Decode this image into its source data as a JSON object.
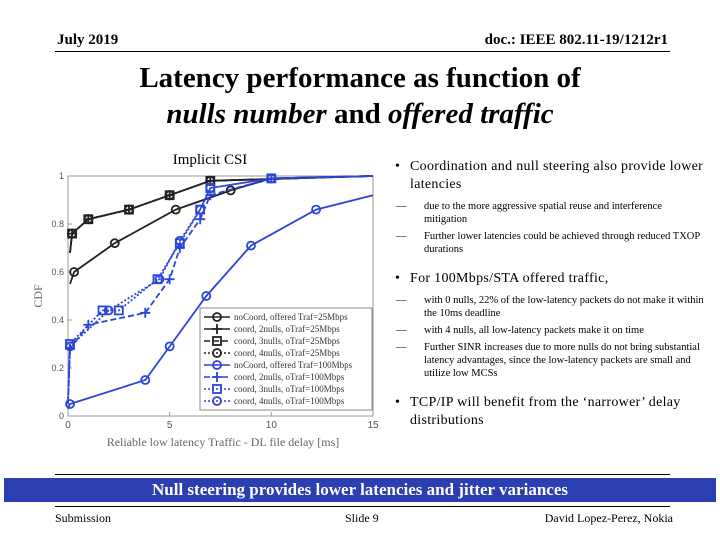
{
  "header": {
    "date": "July 2019",
    "doc_id": "doc.: IEEE 802.11-19/1212r1"
  },
  "title": {
    "line1": "Latency performance as function of",
    "line2_part1": "nulls number",
    "line2_part2": " and ",
    "line2_part3": "offered traffic"
  },
  "chart_data": {
    "type": "line",
    "title": "Implicit CSI",
    "xlabel": "Reliable low latency Traffic - DL file delay [ms]",
    "ylabel": "CDF",
    "xlim": [
      0,
      15
    ],
    "ylim": [
      0,
      1
    ],
    "xticks": [
      "0",
      "5",
      "10",
      "15"
    ],
    "yticks": [
      "0",
      "0.2",
      "0.4",
      "0.6",
      "0.8",
      "1"
    ],
    "series": [
      {
        "name": "noCoord, offered Traf=25Mbps",
        "color": "#222222",
        "marker": "circle",
        "dash": "solid",
        "x": [
          0.1,
          0.3,
          2.3,
          5.3,
          8,
          10,
          15
        ],
        "y": [
          0.55,
          0.6,
          0.72,
          0.86,
          0.94,
          0.99,
          1.0
        ]
      },
      {
        "name": "coord, 2nulls, oTraf=25Mbps",
        "color": "#222222",
        "marker": "plus",
        "dash": "solid",
        "x": [
          0.1,
          0.2,
          1,
          3,
          5,
          7,
          15
        ],
        "y": [
          0.68,
          0.76,
          0.82,
          0.86,
          0.92,
          0.98,
          1.0
        ]
      },
      {
        "name": "coord, 3nulls, oTraf=25Mbps",
        "color": "#222222",
        "marker": "square",
        "dash": "dashed",
        "x": [
          0.1,
          0.2,
          1,
          3,
          5,
          7,
          15
        ],
        "y": [
          0.68,
          0.76,
          0.82,
          0.86,
          0.92,
          0.98,
          1.0
        ]
      },
      {
        "name": "coord, 4nulls, oTraf=25Mbps",
        "color": "#222222",
        "marker": "circle",
        "dash": "dotted",
        "x": [
          0.1,
          0.2,
          1,
          3,
          5,
          7,
          15
        ],
        "y": [
          0.68,
          0.76,
          0.82,
          0.86,
          0.92,
          0.98,
          1.0
        ]
      },
      {
        "name": "noCoord, offered Traf=100Mbps",
        "color": "#2c44d8",
        "marker": "circle",
        "dash": "solid",
        "x": [
          0,
          0.1,
          3.8,
          5,
          6.8,
          9,
          12.2,
          15
        ],
        "y": [
          0.03,
          0.05,
          0.15,
          0.29,
          0.5,
          0.71,
          0.86,
          0.92
        ]
      },
      {
        "name": "coord, 2nulls, oTraf=100Mbps",
        "color": "#2c44d8",
        "marker": "plus",
        "dash": "dashed",
        "x": [
          0,
          0.1,
          1,
          3.8,
          5,
          5.5,
          6.5,
          7,
          10,
          15
        ],
        "y": [
          0.05,
          0.28,
          0.38,
          0.43,
          0.57,
          0.7,
          0.82,
          0.92,
          0.99,
          1.0
        ]
      },
      {
        "name": "coord, 3nulls, oTraf=100Mbps",
        "color": "#2c44d8",
        "marker": "square",
        "dash": "dotted",
        "x": [
          0,
          0.1,
          1.7,
          2.5,
          4.4,
          5.5,
          6.5,
          7,
          10,
          15
        ],
        "y": [
          0.06,
          0.3,
          0.44,
          0.44,
          0.57,
          0.72,
          0.86,
          0.95,
          0.99,
          1.0
        ]
      },
      {
        "name": "coord, 4nulls, oTraf=100Mbps",
        "color": "#2c44d8",
        "marker": "circle",
        "dash": "dotted",
        "x": [
          0,
          0.1,
          2,
          4.5,
          5.5,
          6.5,
          7,
          10,
          15
        ],
        "y": [
          0.07,
          0.29,
          0.44,
          0.57,
          0.73,
          0.86,
          0.95,
          0.99,
          1.0
        ]
      }
    ]
  },
  "bullets": [
    {
      "level": 1,
      "text": "Coordination and null steering also provide lower latencies"
    },
    {
      "level": 2,
      "dash": "—",
      "text": "due to the more aggressive spatial reuse and interference mitigation"
    },
    {
      "level": 2,
      "dash": "—",
      "text": "Further lower latencies could be achieved through reduced TXOP durations"
    },
    {
      "level": 1,
      "text": "For 100Mbps/STA offered traffic,"
    },
    {
      "level": 2,
      "dash": "—",
      "text": "with 0 nulls, 22% of the low-latency packets do not make it within the 10ms deadline"
    },
    {
      "level": 2,
      "dash": "—",
      "text": "with 4 nulls, all low-latency packets make it on time"
    },
    {
      "level": 2,
      "dash": "—",
      "text": "Further SINR increases due to more nulls do not bring substantial latency advantages, since the low-latency packets are small and utilize low MCSs"
    },
    {
      "level": 1,
      "text": "TCP/IP will benefit from the ‘narrower’ delay distributions"
    }
  ],
  "banner": {
    "text": "Null steering provides lower latencies and jitter variances",
    "color": "#2b3fb3"
  },
  "footer": {
    "left": "Submission",
    "middle": "Slide 9",
    "right": "David Lopez-Perez, Nokia"
  }
}
